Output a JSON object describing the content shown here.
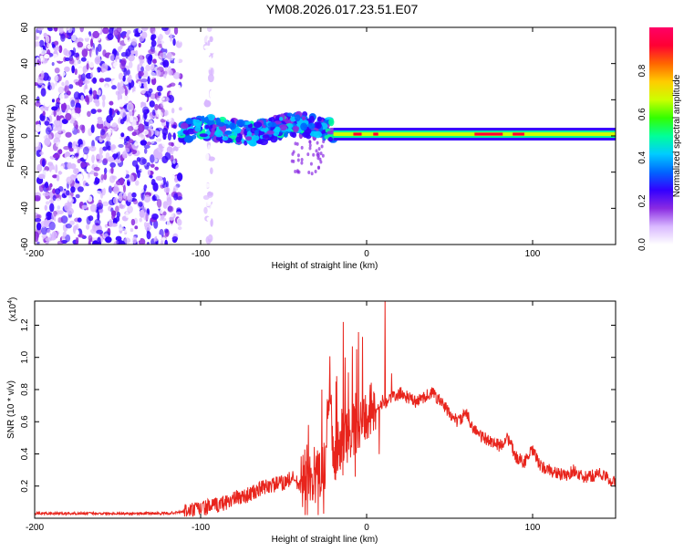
{
  "title": "YM08.2026.017.23.51.E07",
  "chart_data": [
    {
      "type": "heatmap",
      "xlabel": "Height of straight line (km)",
      "ylabel": "Frequency (Hz)",
      "xlim": [
        -200,
        150
      ],
      "ylim": [
        -60,
        60
      ],
      "xticks": [
        -200,
        -100,
        0,
        100
      ],
      "yticks": [
        60,
        40,
        20,
        0,
        -20,
        -40,
        -60
      ],
      "colorbar": {
        "label": "Normalized spectral amplitude",
        "range": [
          0,
          1
        ],
        "ticks": [
          "0.0",
          "0.2",
          "0.4",
          "0.6",
          "0.8"
        ],
        "colors": [
          "#ffffff",
          "#d9b8ff",
          "#8a2be2",
          "#3300ff",
          "#0066ff",
          "#00ccff",
          "#00ff99",
          "#33ff00",
          "#ccff00",
          "#ffcc00",
          "#ff6600",
          "#ff0033",
          "#ff0066"
        ]
      },
      "regions": [
        {
          "name": "noise",
          "x_range": [
            -200,
            -112
          ],
          "freq_range": [
            -60,
            60
          ],
          "amplitude": 0.15
        },
        {
          "name": "noise-gap",
          "x_range": [
            -97,
            -93
          ],
          "freq_range": [
            -60,
            60
          ],
          "amplitude": 0.05
        },
        {
          "name": "band-turbulent",
          "x_range": [
            -112,
            -20
          ],
          "freq_center": 2,
          "amplitude": 0.35
        },
        {
          "name": "band-steady",
          "x_range": [
            -20,
            150
          ],
          "freq_center": 1,
          "amplitude": 0.9
        }
      ]
    },
    {
      "type": "line",
      "xlabel": "Height of straight line (km)",
      "ylabel": "SNR (10 * v/v)",
      "yscale_label": "(x10",
      "yscale_exp": "4",
      "xlim": [
        -200,
        150
      ],
      "ylim": [
        0,
        1.35
      ],
      "xticks": [
        -200,
        -100,
        0,
        100
      ],
      "yticks": [
        "0.2",
        "0.4",
        "0.6",
        "0.8",
        "1.0",
        "1.2"
      ],
      "series": [
        {
          "name": "SNR",
          "color": "#e8241c",
          "x": [
            -200,
            -180,
            -160,
            -140,
            -120,
            -110,
            -100,
            -90,
            -80,
            -70,
            -60,
            -50,
            -45,
            -40,
            -35,
            -30,
            -25,
            -22,
            -20,
            -18,
            -15,
            -12,
            -10,
            -8,
            -5,
            0,
            5,
            8,
            10,
            12,
            15,
            18,
            20,
            25,
            30,
            35,
            40,
            45,
            50,
            55,
            60,
            65,
            70,
            75,
            80,
            85,
            90,
            95,
            100,
            105,
            110,
            115,
            120,
            125,
            130,
            135,
            140,
            145,
            150
          ],
          "values": [
            0.03,
            0.03,
            0.03,
            0.03,
            0.03,
            0.04,
            0.06,
            0.08,
            0.12,
            0.15,
            0.2,
            0.22,
            0.25,
            0.2,
            0.3,
            0.25,
            0.35,
            0.9,
            0.3,
            0.45,
            0.4,
            0.5,
            0.55,
            0.55,
            0.6,
            0.65,
            0.7,
            0.68,
            0.74,
            0.72,
            0.76,
            0.75,
            0.78,
            0.75,
            0.72,
            0.76,
            0.78,
            0.72,
            0.65,
            0.6,
            0.65,
            0.55,
            0.5,
            0.48,
            0.45,
            0.5,
            0.38,
            0.35,
            0.42,
            0.32,
            0.3,
            0.28,
            0.26,
            0.3,
            0.25,
            0.26,
            0.28,
            0.25,
            0.22
          ]
        }
      ],
      "spikes": [
        {
          "x": -14,
          "value": 1.22
        },
        {
          "x": -13,
          "value": 1.0
        },
        {
          "x": 11,
          "value": 1.37
        },
        {
          "x": -35,
          "value": 0.58
        },
        {
          "x": -27,
          "value": 0.8
        },
        {
          "x": 15,
          "value": 0.9
        }
      ]
    }
  ]
}
